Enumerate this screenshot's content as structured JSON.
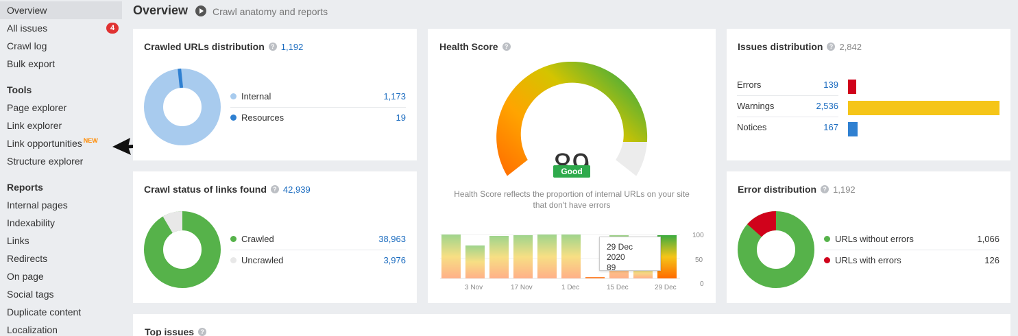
{
  "sidebar": {
    "items_top": [
      {
        "label": "Overview",
        "active": true
      },
      {
        "label": "All issues",
        "badge": "4"
      },
      {
        "label": "Crawl log"
      },
      {
        "label": "Bulk export"
      }
    ],
    "tools_header": "Tools",
    "tools": [
      {
        "label": "Page explorer"
      },
      {
        "label": "Link explorer"
      },
      {
        "label": "Link opportunities",
        "tag": "NEW"
      },
      {
        "label": "Structure explorer"
      }
    ],
    "reports_header": "Reports",
    "reports": [
      {
        "label": "Internal pages"
      },
      {
        "label": "Indexability"
      },
      {
        "label": "Links"
      },
      {
        "label": "Redirects"
      },
      {
        "label": "On page"
      },
      {
        "label": "Social tags"
      },
      {
        "label": "Duplicate content"
      },
      {
        "label": "Localization"
      }
    ]
  },
  "header": {
    "title": "Overview",
    "subtitle": "Crawl anatomy and reports"
  },
  "crawled_urls": {
    "title": "Crawled URLs distribution",
    "total": "1,192",
    "legend": [
      {
        "label": "Internal",
        "value": "1,173",
        "color": "#a8cbee"
      },
      {
        "label": "Resources",
        "value": "19",
        "color": "#2f80d1"
      }
    ]
  },
  "crawl_status": {
    "title": "Crawl status of links found",
    "total": "42,939",
    "legend": [
      {
        "label": "Crawled",
        "value": "38,963",
        "color": "#56b24a"
      },
      {
        "label": "Uncrawled",
        "value": "3,976",
        "color": "#e8e8e8"
      }
    ]
  },
  "health": {
    "title": "Health Score",
    "score": "89",
    "status": "Good",
    "description": "Health Score reflects the proportion of internal URLs on your site that don't have errors",
    "y_ticks": [
      "100",
      "50",
      "0"
    ],
    "x_ticks": [
      "3 Nov",
      "17 Nov",
      "1 Dec",
      "15 Dec",
      "29 Dec"
    ],
    "tooltip_date": "29 Dec 2020",
    "tooltip_value": "89"
  },
  "issues": {
    "title": "Issues distribution",
    "total": "2,842",
    "rows": [
      {
        "label": "Errors",
        "value": "139",
        "color": "#d0021b"
      },
      {
        "label": "Warnings",
        "value": "2,536",
        "color": "#f5c518"
      },
      {
        "label": "Notices",
        "value": "167",
        "color": "#2f80d1"
      }
    ]
  },
  "errors": {
    "title": "Error distribution",
    "total": "1,192",
    "legend": [
      {
        "label": "URLs without errors",
        "value": "1,066",
        "color": "#56b24a"
      },
      {
        "label": "URLs with errors",
        "value": "126",
        "color": "#d0021b"
      }
    ]
  },
  "top_issues": {
    "title": "Top issues"
  }
}
